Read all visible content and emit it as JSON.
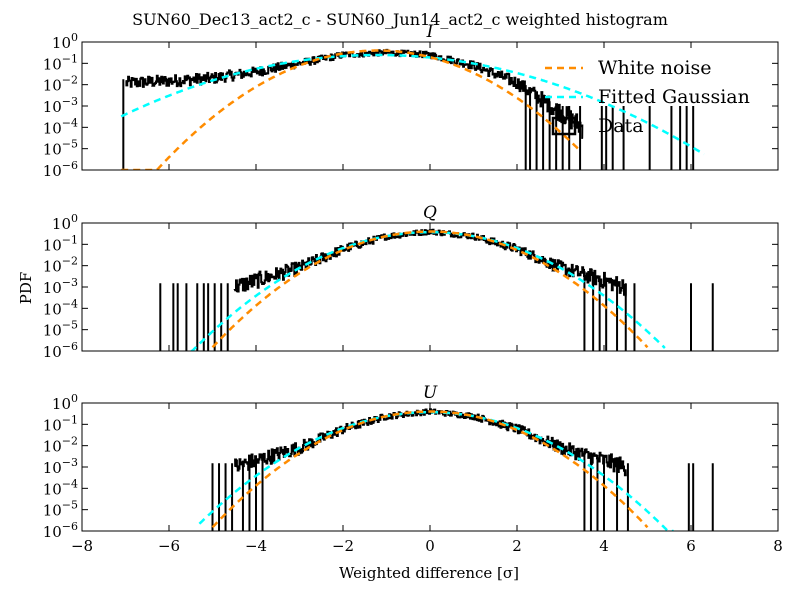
{
  "figure": {
    "title": "SUN60_Dec13_act2_c - SUN60_Jun14_act2_c weighted histogram",
    "xlabel": "Weighted difference [σ]",
    "ylabel": "PDF"
  },
  "colors": {
    "white_noise": "#ff8c00",
    "fitted_gaussian": "#00ffff",
    "data": "#000000"
  },
  "legend": {
    "placement": "upper-right of first panel",
    "entries": [
      "White noise",
      "Fitted Gaussian",
      "Data"
    ]
  },
  "chart_data": [
    {
      "type": "line",
      "panel_title": "I",
      "xlim": [
        -8,
        8
      ],
      "ylim": [
        1e-06,
        1
      ],
      "yscale": "log",
      "xticks": [
        -8,
        -6,
        -4,
        -2,
        0,
        2,
        4,
        6,
        8
      ],
      "yticks": [
        "10^0",
        "10^-1",
        "10^-2",
        "10^-3",
        "10^-4",
        "10^-5",
        "10^-6"
      ],
      "series": [
        {
          "name": "White noise",
          "model": "gaussian",
          "mu": -1.2,
          "sigma": 1.0,
          "x_range": [
            -7.1,
            3.4
          ]
        },
        {
          "name": "Fitted Gaussian",
          "model": "gaussian",
          "mu": -1.2,
          "sigma": 1.62,
          "x_range": [
            -7.1,
            6.3
          ]
        },
        {
          "name": "Data",
          "x": [
            -7.0,
            -6.0,
            -5.0,
            -4.0,
            -3.0,
            -2.0,
            -1.0,
            0.0,
            1.0,
            2.0,
            3.0,
            3.5
          ],
          "y": [
            0.012,
            0.015,
            0.02,
            0.04,
            0.1,
            0.25,
            0.32,
            0.25,
            0.08,
            0.012,
            0.0005,
            0.0001
          ]
        }
      ]
    },
    {
      "type": "line",
      "panel_title": "Q",
      "xlim": [
        -8,
        8
      ],
      "ylim": [
        1e-06,
        1
      ],
      "yscale": "log",
      "xticks": [
        -8,
        -6,
        -4,
        -2,
        0,
        2,
        4,
        6,
        8
      ],
      "yticks": [
        "10^0",
        "10^-1",
        "10^-2",
        "10^-3",
        "10^-4",
        "10^-5",
        "10^-6"
      ],
      "series": [
        {
          "name": "White noise",
          "model": "gaussian",
          "mu": 0.0,
          "sigma": 1.0,
          "x_range": [
            -5.0,
            5.0
          ]
        },
        {
          "name": "Fitted Gaussian",
          "model": "gaussian",
          "mu": 0.0,
          "sigma": 1.08,
          "x_range": [
            -5.5,
            5.4
          ]
        },
        {
          "name": "Data",
          "x": [
            -4.5,
            -4.0,
            -3.0,
            -2.0,
            -1.0,
            0.0,
            1.0,
            2.0,
            3.0,
            4.0,
            4.5
          ],
          "y": [
            0.001,
            0.002,
            0.008,
            0.06,
            0.24,
            0.4,
            0.24,
            0.06,
            0.008,
            0.002,
            0.001
          ]
        }
      ]
    },
    {
      "type": "line",
      "panel_title": "U",
      "xlim": [
        -8,
        8
      ],
      "ylim": [
        1e-06,
        1
      ],
      "yscale": "log",
      "xticks": [
        -8,
        -6,
        -4,
        -2,
        0,
        2,
        4,
        6,
        8
      ],
      "yticks": [
        "10^0",
        "10^-1",
        "10^-2",
        "10^-3",
        "10^-4",
        "10^-5",
        "10^-6"
      ],
      "series": [
        {
          "name": "White noise",
          "model": "gaussian",
          "mu": 0.0,
          "sigma": 1.0,
          "x_range": [
            -5.0,
            5.0
          ]
        },
        {
          "name": "Fitted Gaussian",
          "model": "gaussian",
          "mu": 0.0,
          "sigma": 1.08,
          "x_range": [
            -5.3,
            5.6
          ]
        },
        {
          "name": "Data",
          "x": [
            -4.5,
            -4.0,
            -3.0,
            -2.0,
            -1.0,
            0.0,
            1.0,
            2.0,
            3.0,
            4.0,
            4.5
          ],
          "y": [
            0.001,
            0.002,
            0.008,
            0.06,
            0.24,
            0.4,
            0.24,
            0.06,
            0.008,
            0.002,
            0.001
          ]
        }
      ]
    }
  ]
}
